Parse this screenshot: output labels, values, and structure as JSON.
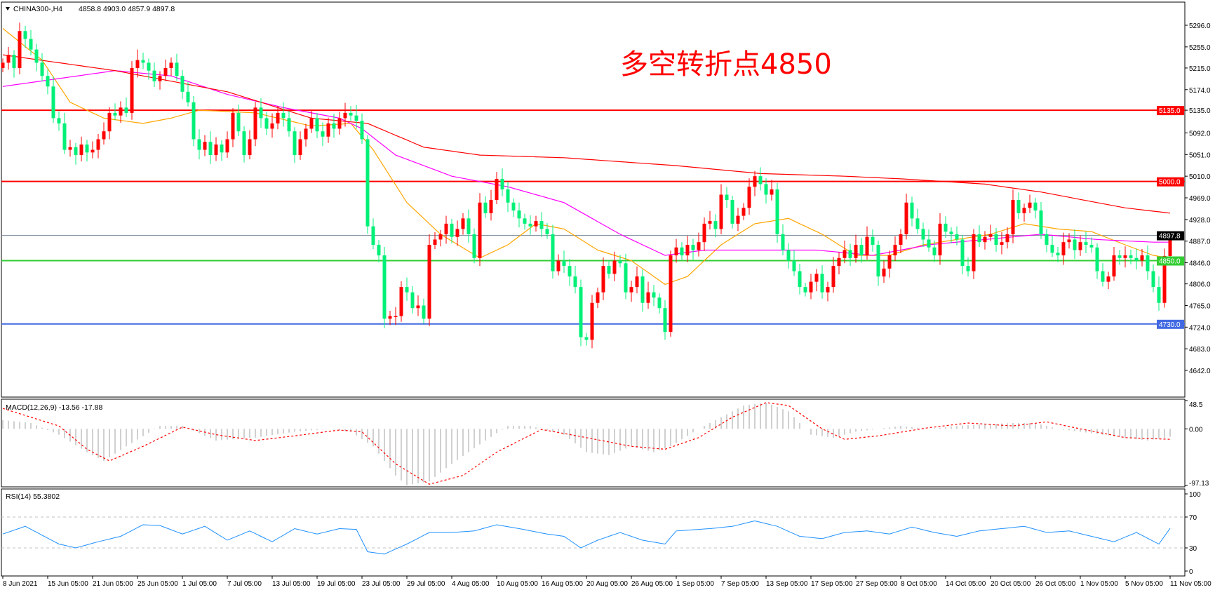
{
  "header": {
    "symbol": "CHINA300-,H4",
    "ohlc": "4858.8 4903.0 4857.9 4897.8"
  },
  "annotation": "多空转折点4850",
  "colors": {
    "up": "#ff0000",
    "down": "#00f078",
    "ma_fast": "#ffa500",
    "ma_mid": "#ff00ff",
    "ma_slow": "#ff0000",
    "macd_hist": "#c0c0c0",
    "macd_signal": "#ff0000",
    "rsi": "#1e90ff"
  },
  "chart_data": [
    {
      "type": "candlestick",
      "title": "CHINA300-,H4",
      "ylim": [
        4642.0,
        5296.0
      ],
      "yticks": [
        "5296.0",
        "5255.0",
        "5215.0",
        "5174.0",
        "5135.0",
        "5092.0",
        "5051.0",
        "5010.0",
        "4969.0",
        "4928.0",
        "4887.0",
        "4846.0",
        "4806.0",
        "4765.0",
        "4724.0",
        "4683.0",
        "4642.0"
      ],
      "xticks": [
        "8 Jun 2021",
        "15 Jun 05:00",
        "21 Jun 05:00",
        "25 Jun 05:00",
        "1 Jul 05:00",
        "7 Jul 05:00",
        "13 Jul 05:00",
        "19 Jul 05:00",
        "23 Jul 05:00",
        "29 Jul 05:00",
        "4 Aug 05:00",
        "10 Aug 05:00",
        "16 Aug 05:00",
        "20 Aug 05:00",
        "26 Aug 05:00",
        "1 Sep 05:00",
        "7 Sep 05:00",
        "13 Sep 05:00",
        "17 Sep 05:00",
        "27 Sep 05:00",
        "8 Oct 05:00",
        "14 Oct 05:00",
        "20 Oct 05:00",
        "26 Oct 05:00",
        "1 Nov 05:00",
        "5 Nov 05:00",
        "11 Nov 05:00"
      ],
      "last_bar": {
        "open": 4858.8,
        "high": 4903.0,
        "low": 4857.9,
        "close": 4897.8
      },
      "close": [
        5225,
        5240,
        5215,
        5285,
        5270,
        5250,
        5225,
        5200,
        5180,
        5120,
        5110,
        5060,
        5065,
        5050,
        5070,
        5055,
        5060,
        5080,
        5095,
        5130,
        5125,
        5140,
        5130,
        5215,
        5230,
        5225,
        5210,
        5190,
        5200,
        5215,
        5225,
        5200,
        5170,
        5150,
        5080,
        5060,
        5075,
        5050,
        5070,
        5055,
        5080,
        5130,
        5095,
        5050,
        5080,
        5140,
        5120,
        5100,
        5110,
        5130,
        5120,
        5095,
        5050,
        5080,
        5100,
        5120,
        5095,
        5085,
        5110,
        5100,
        5120,
        5130,
        5125,
        5115,
        5080,
        4915,
        4880,
        4860,
        4740,
        4745,
        4745,
        4800,
        4790,
        4760,
        4765,
        4740,
        4880,
        4890,
        4900,
        4920,
        4895,
        4910,
        4930,
        4900,
        4855,
        4960,
        4940,
        4965,
        5005,
        4985,
        4960,
        4945,
        4930,
        4920,
        4915,
        4925,
        4910,
        4900,
        4830,
        4850,
        4840,
        4820,
        4800,
        4705,
        4700,
        4770,
        4790,
        4840,
        4825,
        4850,
        4845,
        4790,
        4800,
        4820,
        4770,
        4790,
        4780,
        4760,
        4715,
        4860,
        4875,
        4860,
        4880,
        4870,
        4885,
        4920,
        4925,
        4910,
        4975,
        4965,
        4920,
        4935,
        4950,
        4990,
        5010,
        4995,
        4975,
        4985,
        4900,
        4870,
        4850,
        4830,
        4800,
        4790,
        4810,
        4825,
        4790,
        4800,
        4840,
        4855,
        4870,
        4855,
        4880,
        4860,
        4895,
        4880,
        4820,
        4835,
        4860,
        4880,
        4900,
        4960,
        4930,
        4910,
        4890,
        4875,
        4860,
        4920,
        4905,
        4900,
        4890,
        4840,
        4830,
        4900,
        4885,
        4895,
        4900,
        4880,
        4885,
        4900,
        4965,
        4940,
        4950,
        4960,
        4945,
        4900,
        4880,
        4865,
        4860,
        4885,
        4890,
        4870,
        4885,
        4880,
        4875,
        4830,
        4810,
        4820,
        4860,
        4855,
        4860,
        4855,
        4850,
        4860,
        4830,
        4800,
        4770,
        4858.8,
        4897.8
      ],
      "moving_averages": [
        {
          "color_key": "ma_fast",
          "points": [
            [
              0,
              5290
            ],
            [
              7,
              5230
            ],
            [
              12,
              5150
            ],
            [
              18,
              5120
            ],
            [
              25,
              5110
            ],
            [
              30,
              5120
            ],
            [
              35,
              5135
            ],
            [
              45,
              5130
            ],
            [
              55,
              5105
            ],
            [
              62,
              5110
            ],
            [
              66,
              5060
            ],
            [
              72,
              4960
            ],
            [
              78,
              4900
            ],
            [
              85,
              4855
            ],
            [
              90,
              4880
            ],
            [
              95,
              4920
            ],
            [
              100,
              4910
            ],
            [
              106,
              4870
            ],
            [
              112,
              4850
            ],
            [
              118,
              4805
            ],
            [
              122,
              4820
            ],
            [
              128,
              4880
            ],
            [
              134,
              4920
            ],
            [
              140,
              4930
            ],
            [
              146,
              4900
            ],
            [
              152,
              4860
            ],
            [
              158,
              4860
            ],
            [
              164,
              4880
            ],
            [
              170,
              4890
            ],
            [
              176,
              4900
            ],
            [
              182,
              4920
            ],
            [
              188,
              4910
            ],
            [
              194,
              4905
            ],
            [
              200,
              4880
            ],
            [
              205,
              4860
            ],
            [
              208,
              4855
            ]
          ]
        },
        {
          "color_key": "ma_mid",
          "points": [
            [
              0,
              5180
            ],
            [
              10,
              5195
            ],
            [
              20,
              5210
            ],
            [
              30,
              5200
            ],
            [
              40,
              5165
            ],
            [
              50,
              5140
            ],
            [
              60,
              5120
            ],
            [
              64,
              5100
            ],
            [
              70,
              5050
            ],
            [
              80,
              5010
            ],
            [
              90,
              4990
            ],
            [
              100,
              4960
            ],
            [
              110,
              4900
            ],
            [
              118,
              4860
            ],
            [
              125,
              4870
            ],
            [
              135,
              4870
            ],
            [
              145,
              4870
            ],
            [
              155,
              4860
            ],
            [
              165,
              4880
            ],
            [
              175,
              4890
            ],
            [
              185,
              4900
            ],
            [
              195,
              4890
            ],
            [
              205,
              4885
            ],
            [
              208,
              4885
            ]
          ]
        },
        {
          "color_key": "ma_slow",
          "points": [
            [
              0,
              5240
            ],
            [
              20,
              5210
            ],
            [
              40,
              5170
            ],
            [
              55,
              5120
            ],
            [
              65,
              5110
            ],
            [
              75,
              5065
            ],
            [
              85,
              5050
            ],
            [
              100,
              5045
            ],
            [
              120,
              5030
            ],
            [
              135,
              5015
            ],
            [
              150,
              5010
            ],
            [
              160,
              5005
            ],
            [
              175,
              4995
            ],
            [
              185,
              4980
            ],
            [
              200,
              4950
            ],
            [
              208,
              4940
            ]
          ]
        }
      ],
      "hlines": [
        {
          "value": 5135.0,
          "label": "5135.0",
          "color": "#ff0000"
        },
        {
          "value": 5000.0,
          "label": "5000.0",
          "color": "#ff0000"
        },
        {
          "value": 4897.8,
          "label": "4897.8",
          "color": "#778899",
          "label_bg": "#000000"
        },
        {
          "value": 4850.0,
          "label": "4850.0",
          "color": "#32cd32"
        },
        {
          "value": 4730.0,
          "label": "4730.0",
          "color": "#4169e1"
        }
      ]
    },
    {
      "type": "bar",
      "title": "MACD(12,26,9) -13.56 -17.88",
      "ylim": [
        -97.13,
        48.5
      ],
      "yticks": [
        "48.5",
        "0.00",
        "-97.13"
      ],
      "main": [
        [
          0,
          15
        ],
        [
          5,
          10
        ],
        [
          10,
          -10
        ],
        [
          15,
          -40
        ],
        [
          18,
          -55
        ],
        [
          22,
          -30
        ],
        [
          28,
          5
        ],
        [
          32,
          5
        ],
        [
          38,
          -20
        ],
        [
          45,
          -15
        ],
        [
          52,
          -5
        ],
        [
          58,
          0
        ],
        [
          62,
          -5
        ],
        [
          66,
          -30
        ],
        [
          70,
          -80
        ],
        [
          72,
          -97
        ],
        [
          76,
          -90
        ],
        [
          80,
          -60
        ],
        [
          86,
          -20
        ],
        [
          90,
          5
        ],
        [
          94,
          5
        ],
        [
          100,
          -10
        ],
        [
          104,
          -40
        ],
        [
          108,
          -45
        ],
        [
          112,
          -30
        ],
        [
          116,
          -40
        ],
        [
          119,
          -30
        ],
        [
          124,
          0
        ],
        [
          128,
          20
        ],
        [
          132,
          40
        ],
        [
          136,
          45
        ],
        [
          140,
          30
        ],
        [
          144,
          -10
        ],
        [
          148,
          -15
        ],
        [
          152,
          -5
        ],
        [
          156,
          0
        ],
        [
          160,
          5
        ],
        [
          165,
          0
        ],
        [
          170,
          5
        ],
        [
          175,
          8
        ],
        [
          180,
          10
        ],
        [
          184,
          10
        ],
        [
          188,
          0
        ],
        [
          192,
          -5
        ],
        [
          196,
          -10
        ],
        [
          200,
          -15
        ],
        [
          204,
          -20
        ],
        [
          208,
          -13.56
        ]
      ],
      "signal": [
        [
          0,
          35
        ],
        [
          10,
          5
        ],
        [
          15,
          -35
        ],
        [
          19,
          -55
        ],
        [
          25,
          -30
        ],
        [
          32,
          3
        ],
        [
          38,
          -10
        ],
        [
          45,
          -20
        ],
        [
          52,
          -12
        ],
        [
          60,
          -2
        ],
        [
          64,
          -5
        ],
        [
          70,
          -60
        ],
        [
          76,
          -95
        ],
        [
          82,
          -80
        ],
        [
          88,
          -40
        ],
        [
          96,
          -1
        ],
        [
          104,
          -15
        ],
        [
          112,
          -30
        ],
        [
          118,
          -35
        ],
        [
          124,
          -15
        ],
        [
          130,
          20
        ],
        [
          136,
          45
        ],
        [
          140,
          40
        ],
        [
          146,
          0
        ],
        [
          150,
          -18
        ],
        [
          156,
          -12
        ],
        [
          165,
          2
        ],
        [
          172,
          10
        ],
        [
          180,
          5
        ],
        [
          186,
          12
        ],
        [
          192,
          0
        ],
        [
          200,
          -15
        ],
        [
          208,
          -17.88
        ]
      ]
    },
    {
      "type": "line",
      "title": "RSI(14) 55.3802",
      "ylim": [
        0,
        100
      ],
      "yticks": [
        "100",
        "70",
        "30",
        "0"
      ],
      "levels": [
        70,
        30
      ],
      "values": [
        [
          0,
          48
        ],
        [
          4,
          58
        ],
        [
          10,
          35
        ],
        [
          13,
          30
        ],
        [
          17,
          38
        ],
        [
          21,
          45
        ],
        [
          25,
          60
        ],
        [
          28,
          59
        ],
        [
          32,
          48
        ],
        [
          36,
          58
        ],
        [
          40,
          40
        ],
        [
          44,
          52
        ],
        [
          48,
          38
        ],
        [
          52,
          55
        ],
        [
          56,
          48
        ],
        [
          60,
          55
        ],
        [
          63,
          54
        ],
        [
          65,
          25
        ],
        [
          68,
          22
        ],
        [
          72,
          35
        ],
        [
          76,
          50
        ],
        [
          80,
          50
        ],
        [
          84,
          52
        ],
        [
          88,
          60
        ],
        [
          92,
          55
        ],
        [
          97,
          48
        ],
        [
          100,
          45
        ],
        [
          103,
          30
        ],
        [
          106,
          40
        ],
        [
          110,
          50
        ],
        [
          114,
          40
        ],
        [
          118,
          35
        ],
        [
          120,
          52
        ],
        [
          126,
          55
        ],
        [
          130,
          58
        ],
        [
          134,
          65
        ],
        [
          138,
          58
        ],
        [
          142,
          45
        ],
        [
          146,
          42
        ],
        [
          150,
          50
        ],
        [
          154,
          52
        ],
        [
          158,
          48
        ],
        [
          162,
          57
        ],
        [
          166,
          50
        ],
        [
          170,
          45
        ],
        [
          174,
          52
        ],
        [
          178,
          55
        ],
        [
          182,
          58
        ],
        [
          186,
          50
        ],
        [
          190,
          52
        ],
        [
          194,
          45
        ],
        [
          198,
          38
        ],
        [
          202,
          50
        ],
        [
          206,
          35
        ],
        [
          208,
          55.38
        ]
      ]
    }
  ]
}
